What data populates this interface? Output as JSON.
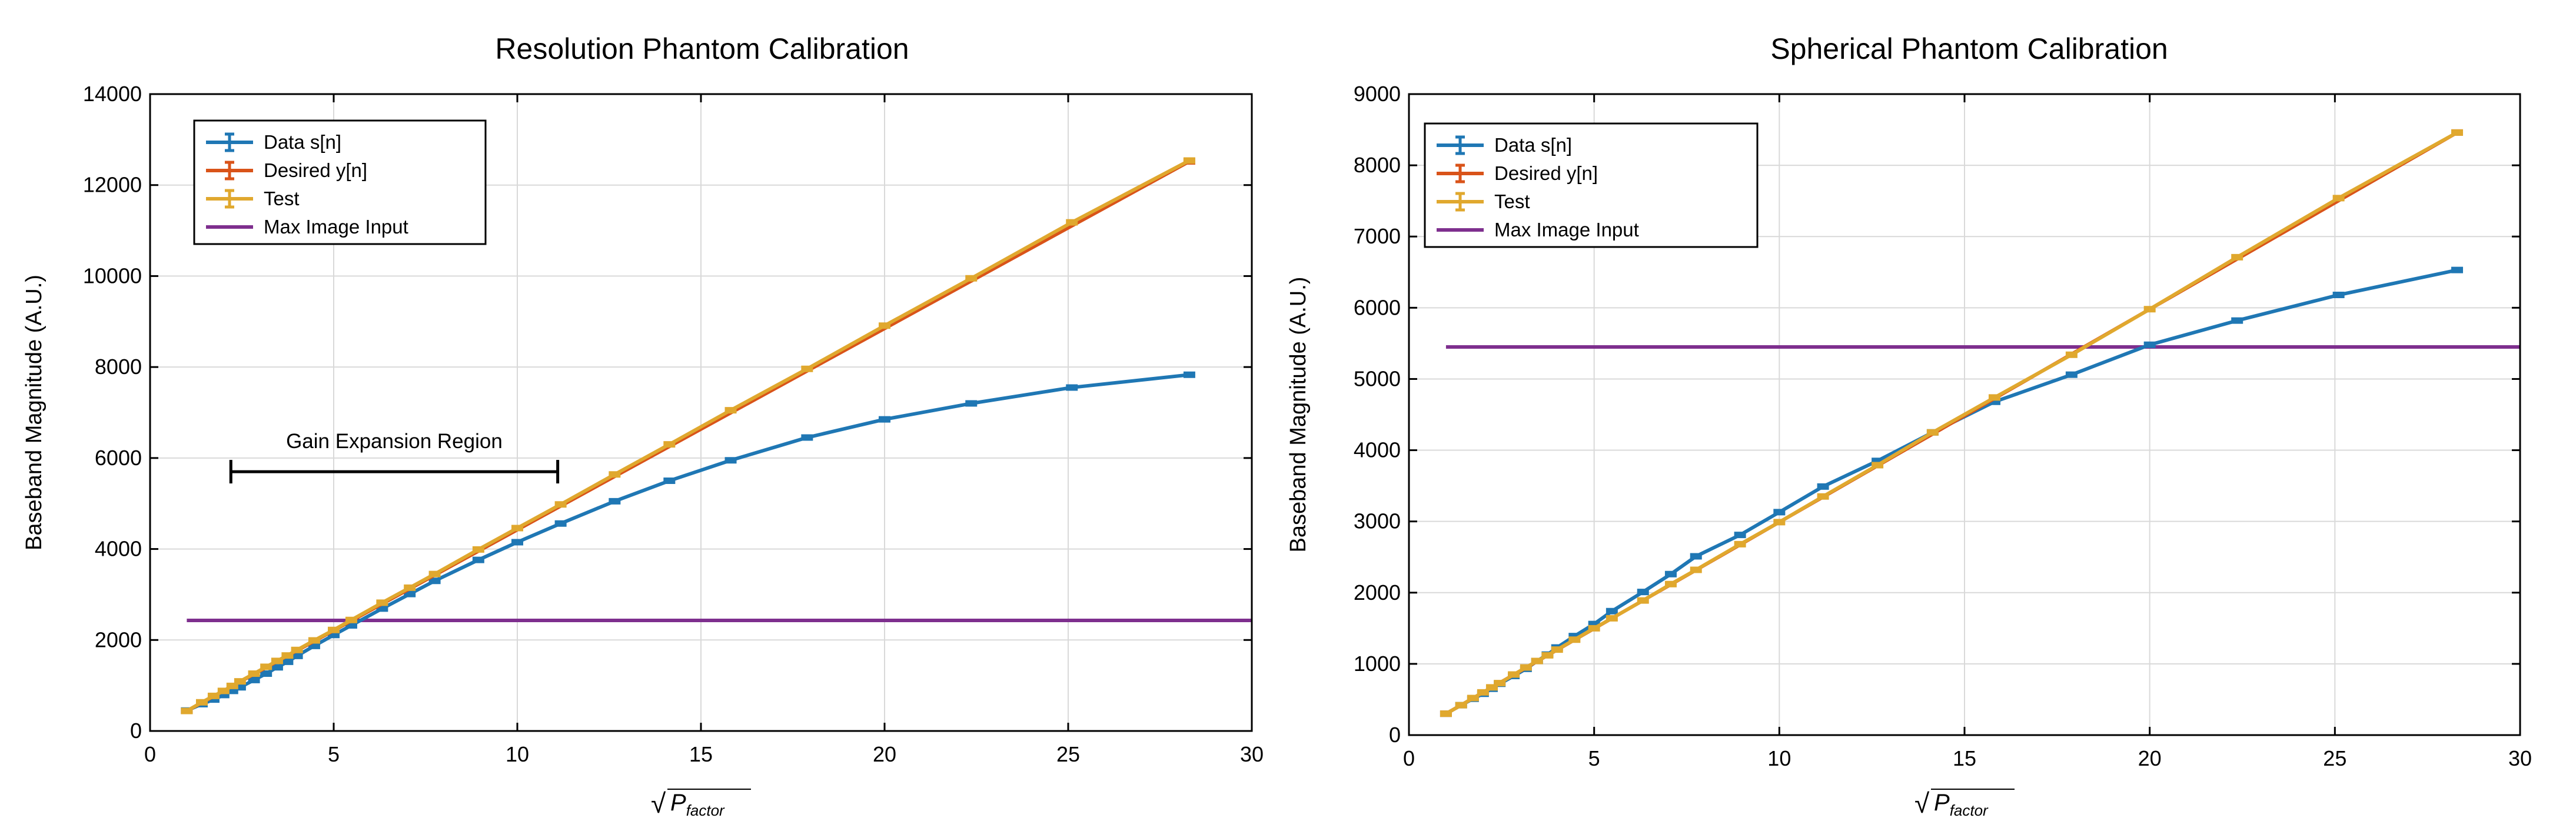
{
  "colors": {
    "series_data": "#1f77b4",
    "series_desired": "#d95319",
    "series_test": "#e0a82e",
    "series_max": "#7e2f8e",
    "axis": "#000000",
    "grid": "#d9d9d9",
    "bracket": "#000000"
  },
  "x_axis_symbol": "P",
  "x_axis_subscript": "factor",
  "chart_data": [
    {
      "type": "line",
      "title": "Resolution Phantom Calibration",
      "xlabel": "√P_factor",
      "ylabel": "Baseband Magnitude (A.U.)",
      "xlim": [
        0,
        30
      ],
      "ylim": [
        0,
        14000
      ],
      "xticks": [
        0,
        5,
        10,
        15,
        20,
        25,
        30
      ],
      "yticks": [
        0,
        2000,
        4000,
        6000,
        8000,
        10000,
        12000,
        14000
      ],
      "legend": [
        "Data s[n]",
        "Desired y[n]",
        "Test",
        "Max Image Input"
      ],
      "legend_location": "top-left",
      "series": [
        {
          "name": "Data s[n]",
          "style": "errorbar",
          "x": [
            1,
            1.41,
            1.73,
            2,
            2.24,
            2.45,
            2.83,
            3.16,
            3.46,
            3.74,
            4,
            4.47,
            5,
            5.48,
            6.32,
            7.07,
            7.75,
            8.94,
            10,
            11.18,
            12.65,
            14.14,
            15.81,
            17.89,
            20,
            22.36,
            25.1,
            28.3
          ],
          "y": [
            450,
            590,
            690,
            790,
            880,
            960,
            1120,
            1260,
            1400,
            1520,
            1650,
            1870,
            2110,
            2320,
            2690,
            3010,
            3300,
            3760,
            4150,
            4560,
            5050,
            5500,
            5950,
            6450,
            6850,
            7200,
            7550,
            7830
          ]
        },
        {
          "name": "Desired y[n]",
          "style": "errorbar",
          "x": [
            1,
            28.3
          ],
          "y": [
            440,
            12520
          ]
        },
        {
          "name": "Test",
          "style": "errorbar",
          "x": [
            1,
            1.41,
            1.73,
            2,
            2.24,
            2.45,
            2.83,
            3.16,
            3.46,
            3.74,
            4,
            4.47,
            5,
            5.48,
            6.32,
            7.07,
            7.75,
            8.94,
            10,
            11.18,
            12.65,
            14.14,
            15.81,
            17.89,
            20,
            22.36,
            25.1,
            28.3
          ],
          "y": [
            440,
            630,
            770,
            880,
            990,
            1090,
            1260,
            1410,
            1540,
            1660,
            1780,
            1990,
            2220,
            2440,
            2820,
            3150,
            3450,
            3990,
            4460,
            4980,
            5640,
            6300,
            7050,
            7960,
            8910,
            9950,
            11180,
            12540
          ]
        },
        {
          "name": "Max Image Input",
          "style": "line",
          "x": [
            1,
            30
          ],
          "y": [
            2430,
            2430
          ]
        }
      ],
      "annotation": {
        "text": "Gain Expansion Region",
        "x_start": 2.2,
        "x_end": 11.1,
        "y": 5700
      }
    },
    {
      "type": "line",
      "title": "Spherical Phantom Calibration",
      "xlabel": "√P_factor",
      "ylabel": "Baseband Magnitude (A.U.)",
      "xlim": [
        0,
        30
      ],
      "ylim": [
        0,
        9000
      ],
      "xticks": [
        0,
        5,
        10,
        15,
        20,
        25,
        30
      ],
      "yticks": [
        0,
        1000,
        2000,
        3000,
        4000,
        5000,
        6000,
        7000,
        8000,
        9000
      ],
      "legend": [
        "Data s[n]",
        "Desired y[n]",
        "Test",
        "Max Image Input"
      ],
      "legend_location": "top-left",
      "series": [
        {
          "name": "Data s[n]",
          "style": "errorbar",
          "x": [
            1,
            1.41,
            1.73,
            2,
            2.24,
            2.45,
            2.83,
            3.16,
            3.46,
            3.74,
            4,
            4.47,
            5,
            5.48,
            6.32,
            7.07,
            7.75,
            8.94,
            10,
            11.18,
            12.65,
            14.14,
            15.81,
            17.89,
            20,
            22.36,
            25.1,
            28.3
          ],
          "y": [
            300,
            420,
            510,
            580,
            650,
            720,
            830,
            930,
            1040,
            1130,
            1230,
            1390,
            1560,
            1740,
            2010,
            2260,
            2510,
            2810,
            3130,
            3490,
            3850,
            4250,
            4680,
            5060,
            5480,
            5820,
            6180,
            6530
          ]
        },
        {
          "name": "Desired y[n]",
          "style": "errorbar",
          "x": [
            1,
            28.3
          ],
          "y": [
            300,
            8460
          ]
        },
        {
          "name": "Test",
          "style": "errorbar",
          "x": [
            1,
            1.41,
            1.73,
            2,
            2.24,
            2.45,
            2.83,
            3.16,
            3.46,
            3.74,
            4,
            4.47,
            5,
            5.48,
            6.32,
            7.07,
            7.75,
            8.94,
            10,
            11.18,
            12.65,
            14.14,
            15.81,
            17.89,
            20,
            22.36,
            25.1,
            28.3
          ],
          "y": [
            300,
            420,
            520,
            600,
            670,
            730,
            850,
            950,
            1040,
            1120,
            1200,
            1340,
            1500,
            1640,
            1890,
            2120,
            2320,
            2680,
            2990,
            3350,
            3790,
            4250,
            4740,
            5340,
            5980,
            6710,
            7540,
            8460
          ]
        },
        {
          "name": "Max Image Input",
          "style": "line",
          "x": [
            1,
            30
          ],
          "y": [
            5450,
            5450
          ]
        }
      ]
    }
  ]
}
